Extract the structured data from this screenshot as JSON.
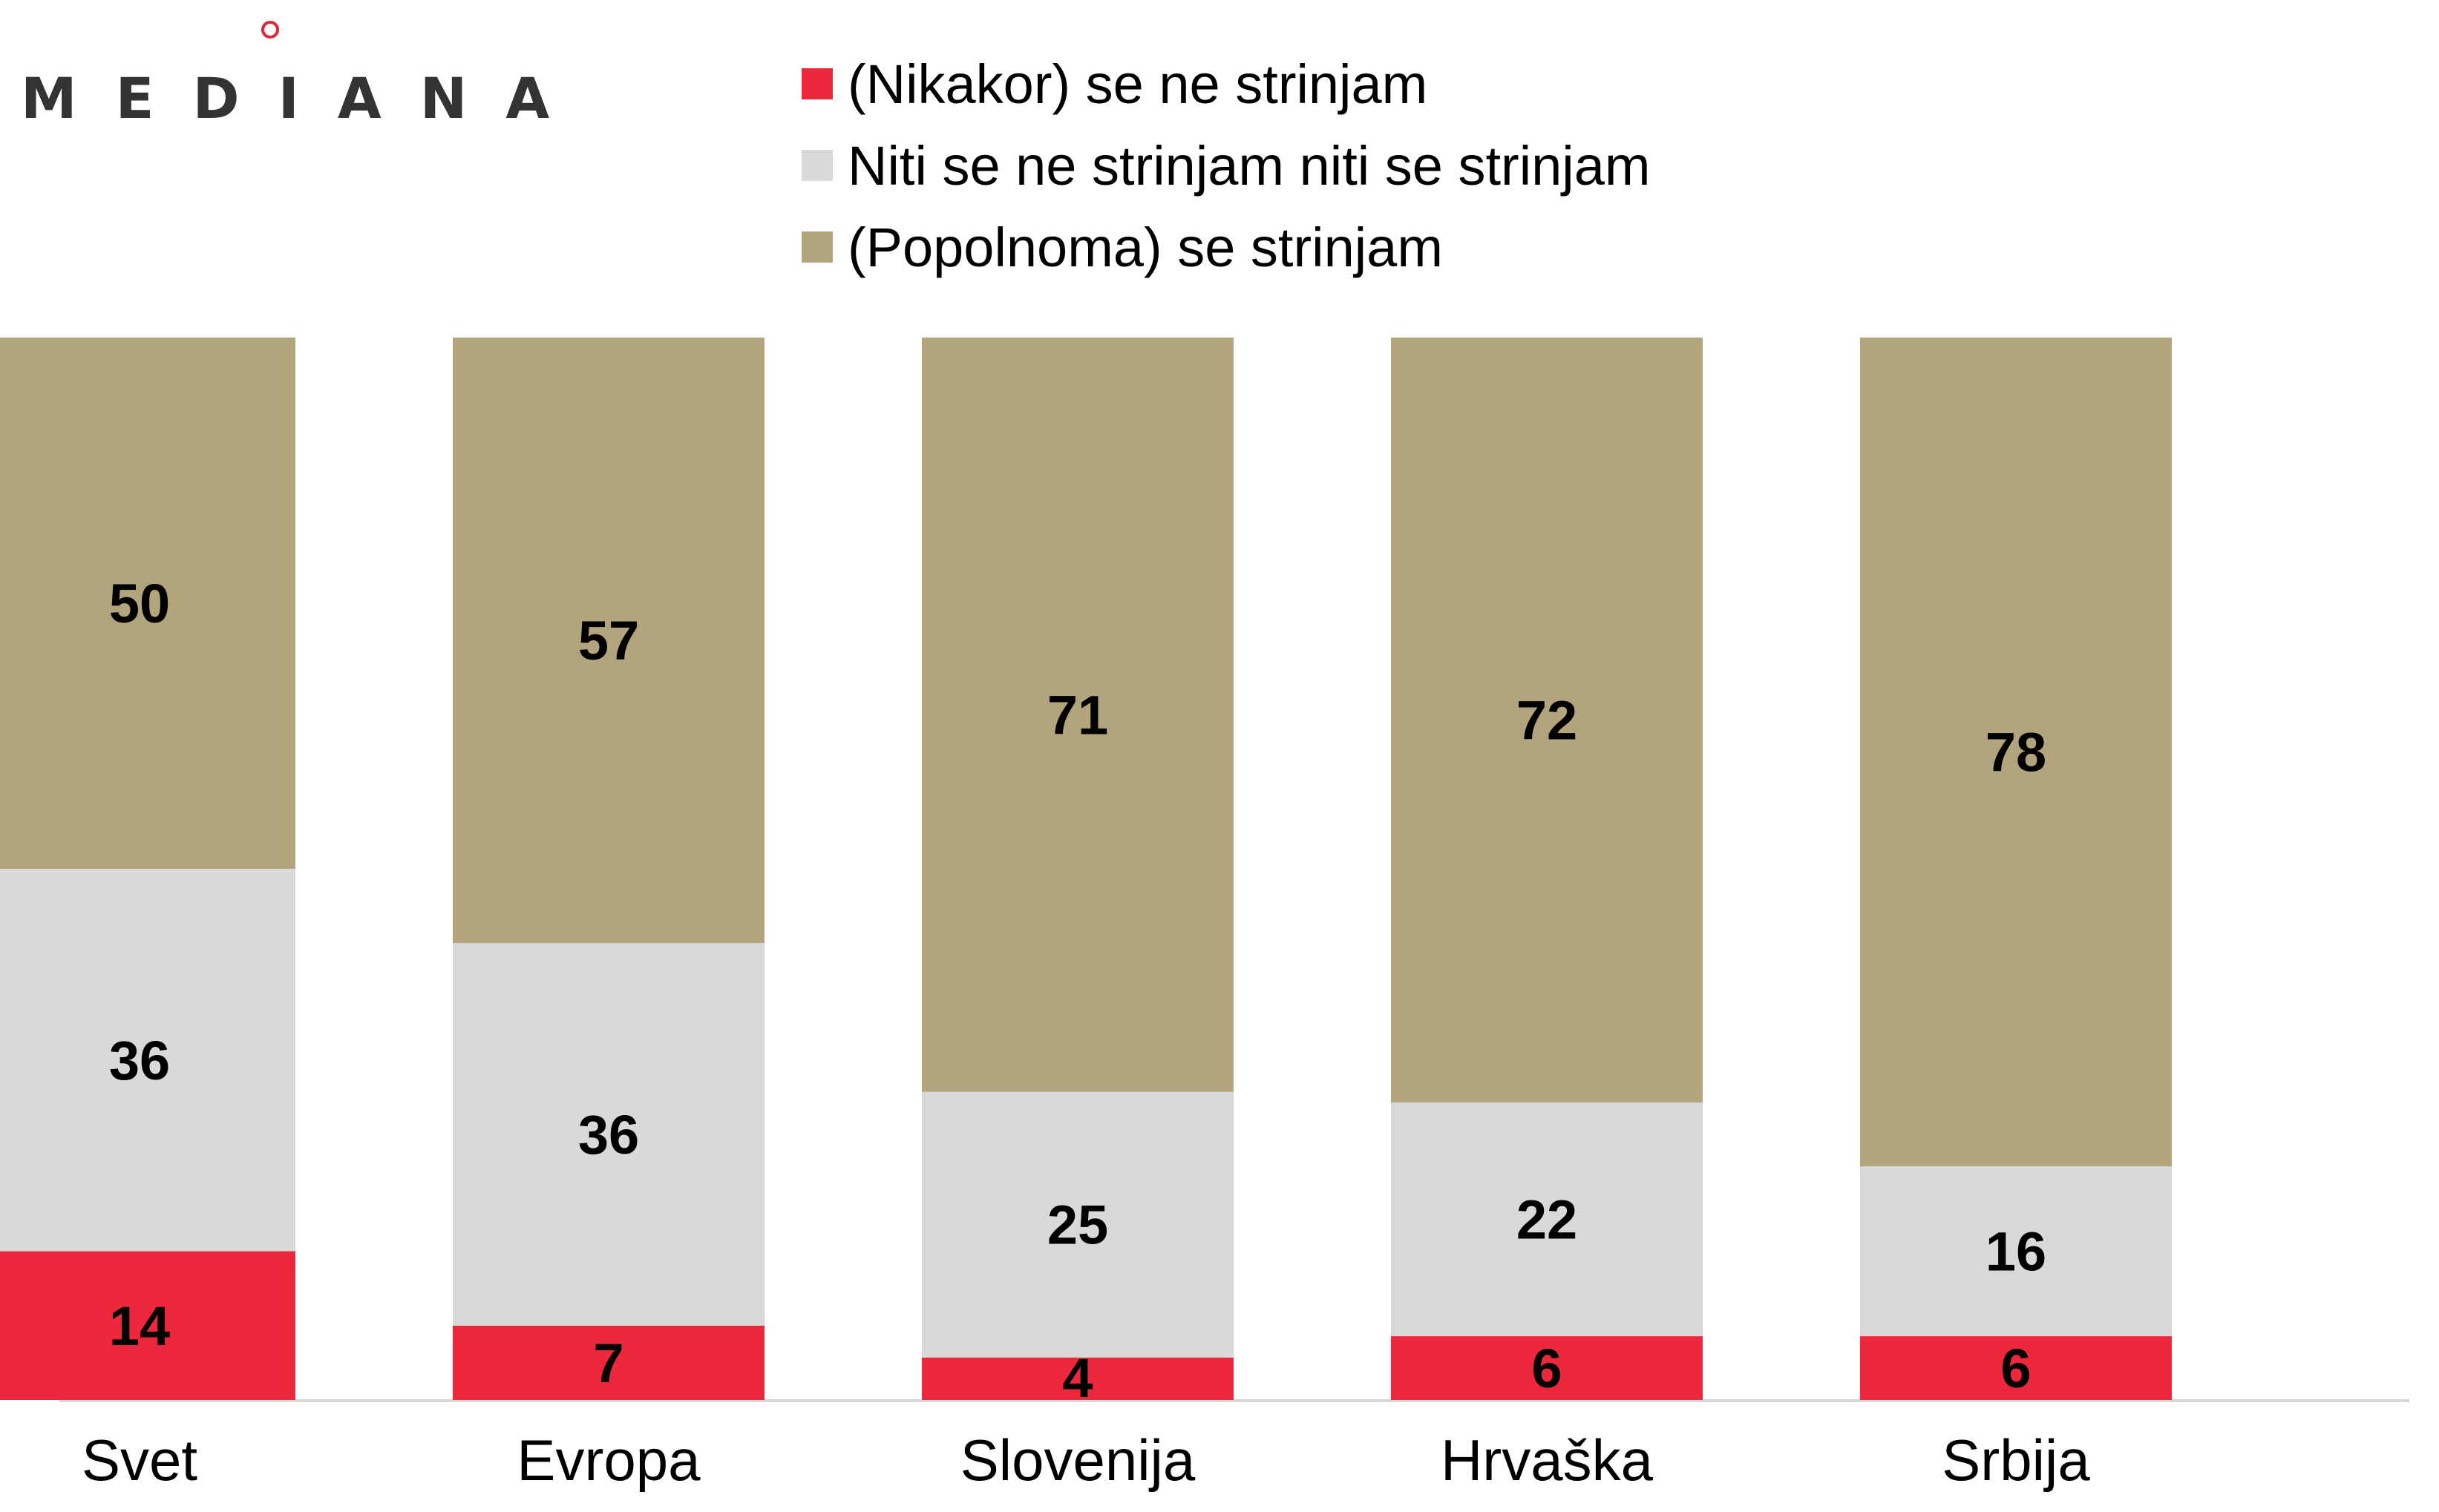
{
  "brand": {
    "logo_text": "MEDIANA",
    "accent": "#e0253a"
  },
  "chart_data": {
    "type": "bar",
    "stacked": true,
    "categories": [
      "Svet",
      "Evropa",
      "Slovenija",
      "Hrvaška",
      "Srbija"
    ],
    "series": [
      {
        "name": "(Nikakor) se ne strinjam",
        "color": "#ee283c",
        "values": [
          14,
          7,
          4,
          6,
          6
        ]
      },
      {
        "name": "Niti se ne strinjam niti se strinjam",
        "color": "#d9d9d9",
        "values": [
          36,
          36,
          25,
          22,
          16
        ]
      },
      {
        "name": "(Popolnoma) se strinjam",
        "color": "#b2a57d",
        "values": [
          50,
          57,
          71,
          72,
          78
        ]
      }
    ],
    "ylim": [
      0,
      100
    ],
    "grid": false,
    "legend_position": "top"
  }
}
